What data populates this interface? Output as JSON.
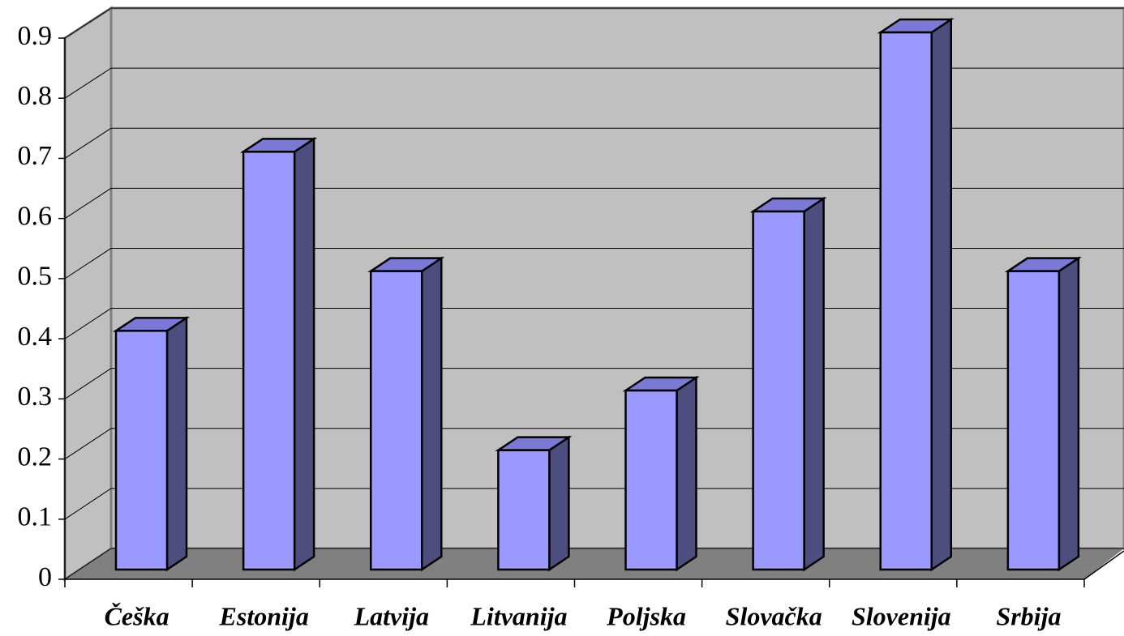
{
  "chart_data": {
    "type": "bar3d",
    "categories": [
      "Češka",
      "Estonija",
      "Latvija",
      "Litvanija",
      "Poljska",
      "Slovačka",
      "Slovenija",
      "Srbija"
    ],
    "values": [
      0.4,
      0.7,
      0.5,
      0.2,
      0.3,
      0.6,
      0.9,
      0.5
    ],
    "color": "#9999ff",
    "ylim": [
      0,
      0.9
    ],
    "yticks": [
      0,
      0.1,
      0.2,
      0.3,
      0.4,
      0.5,
      0.6,
      0.7,
      0.8,
      0.9
    ],
    "grid": true
  }
}
